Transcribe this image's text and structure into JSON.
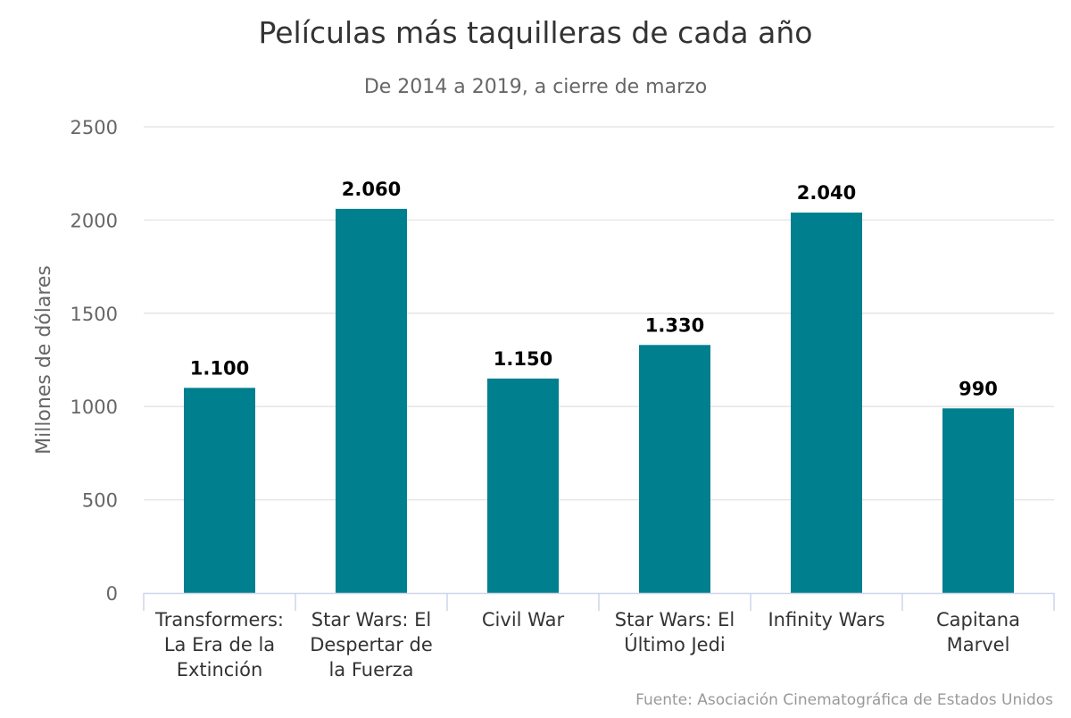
{
  "chart_data": {
    "type": "bar",
    "title": "Películas más taquilleras de cada año",
    "subtitle": "De 2014 a 2019, a cierre de marzo",
    "ylabel": "Millones de dólares",
    "xlabel": "",
    "ylim": [
      0,
      2500
    ],
    "yticks": [
      0,
      500,
      1000,
      1500,
      2000,
      2500
    ],
    "grid": true,
    "legend": "none",
    "categories": [
      [
        "Transformers:",
        "La Era de la",
        "Extinción"
      ],
      [
        "Star Wars: El",
        "Despertar de",
        "la Fuerza"
      ],
      [
        "Civil War"
      ],
      [
        "Star Wars: El",
        "Último Jedi"
      ],
      [
        "Infinity Wars"
      ],
      [
        "Capitana",
        "Marvel"
      ]
    ],
    "values": [
      1100,
      2060,
      1150,
      1330,
      2040,
      990
    ],
    "data_labels": [
      "1.100",
      "2.060",
      "1.150",
      "1.330",
      "2.040",
      "990"
    ],
    "source": "Fuente: Asociación Cinematográfica de Estados Unidos",
    "colors": {
      "bar": "#007f8e",
      "grid": "#e6e6e6",
      "axis": "#ccd6eb"
    }
  }
}
